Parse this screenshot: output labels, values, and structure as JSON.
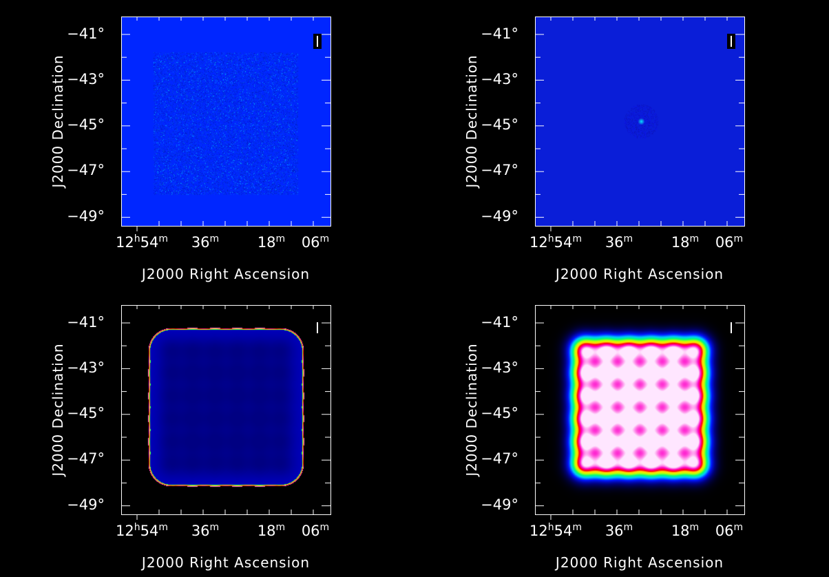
{
  "panels": [
    {
      "id": "residual",
      "image": "residual-noise",
      "stokes": "I",
      "stokes_boxed": true,
      "background": "#0026ff"
    },
    {
      "id": "psf",
      "image": "psf-point",
      "stokes": "I",
      "stokes_boxed": true,
      "background": "#0a1ed8"
    },
    {
      "id": "sensitivity",
      "image": "mosaic-edge-ring",
      "stokes": "I",
      "stokes_boxed": false,
      "background": "#000000"
    },
    {
      "id": "primary-beam",
      "image": "mosaic-6x6-pointings",
      "stokes": "I",
      "stokes_boxed": false,
      "background": "#000000"
    }
  ],
  "axes": {
    "ylabel": "J2000 Declination",
    "xlabel": "J2000 Right Ascension",
    "yticks": [
      "−41°",
      "−43°",
      "−45°",
      "−47°",
      "−49°"
    ],
    "xticks": [
      {
        "main": "12",
        "sup1": "h",
        "mid": "54",
        "sup2": "m"
      },
      {
        "main": "",
        "sup1": "",
        "mid": "36",
        "sup2": "m"
      },
      {
        "main": "",
        "sup1": "",
        "mid": "18",
        "sup2": "m"
      },
      {
        "main": "",
        "sup1": "",
        "mid": "06",
        "sup2": "m"
      }
    ]
  },
  "colormap": "rainbow"
}
